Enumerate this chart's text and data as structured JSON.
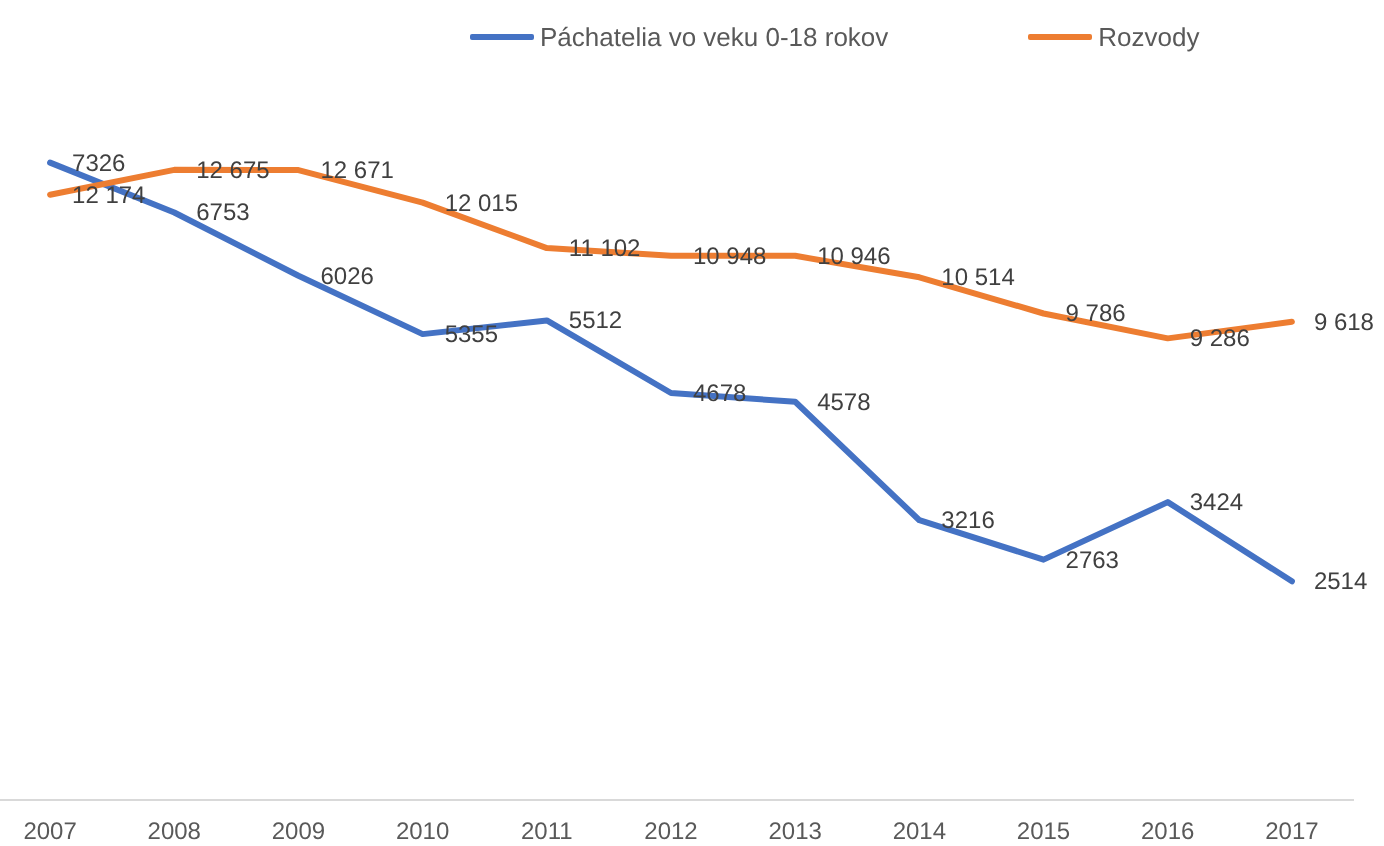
{
  "chart_data": {
    "type": "line",
    "categories": [
      "2007",
      "2008",
      "2009",
      "2010",
      "2011",
      "2012",
      "2013",
      "2014",
      "2015",
      "2016",
      "2017"
    ],
    "series": [
      {
        "name": "Páchatelia vo veku 0-18 rokov",
        "color": "#4472c4",
        "values": [
          7326,
          6753,
          6026,
          5355,
          5512,
          4678,
          4578,
          3216,
          2763,
          3424,
          2514
        ],
        "value_labels": [
          "7326",
          "6753",
          "6026",
          "5355",
          "5512",
          "4678",
          "4578",
          "3216",
          "2763",
          "3424",
          "2514"
        ]
      },
      {
        "name": "Rozvody",
        "color": "#ed7d31",
        "axis": "y2",
        "values": [
          12174,
          12675,
          12671,
          12015,
          11102,
          10948,
          10946,
          10514,
          9786,
          9286,
          9618
        ],
        "value_labels": [
          "12 174",
          "12 675",
          "12 671",
          "12 015",
          "11 102",
          "10 948",
          "10 946",
          "10 514",
          "9 786",
          "9 286",
          "9 618"
        ]
      }
    ],
    "legend": "top",
    "tick_labels": "x",
    "marker": "none",
    "line_style": "solid"
  }
}
